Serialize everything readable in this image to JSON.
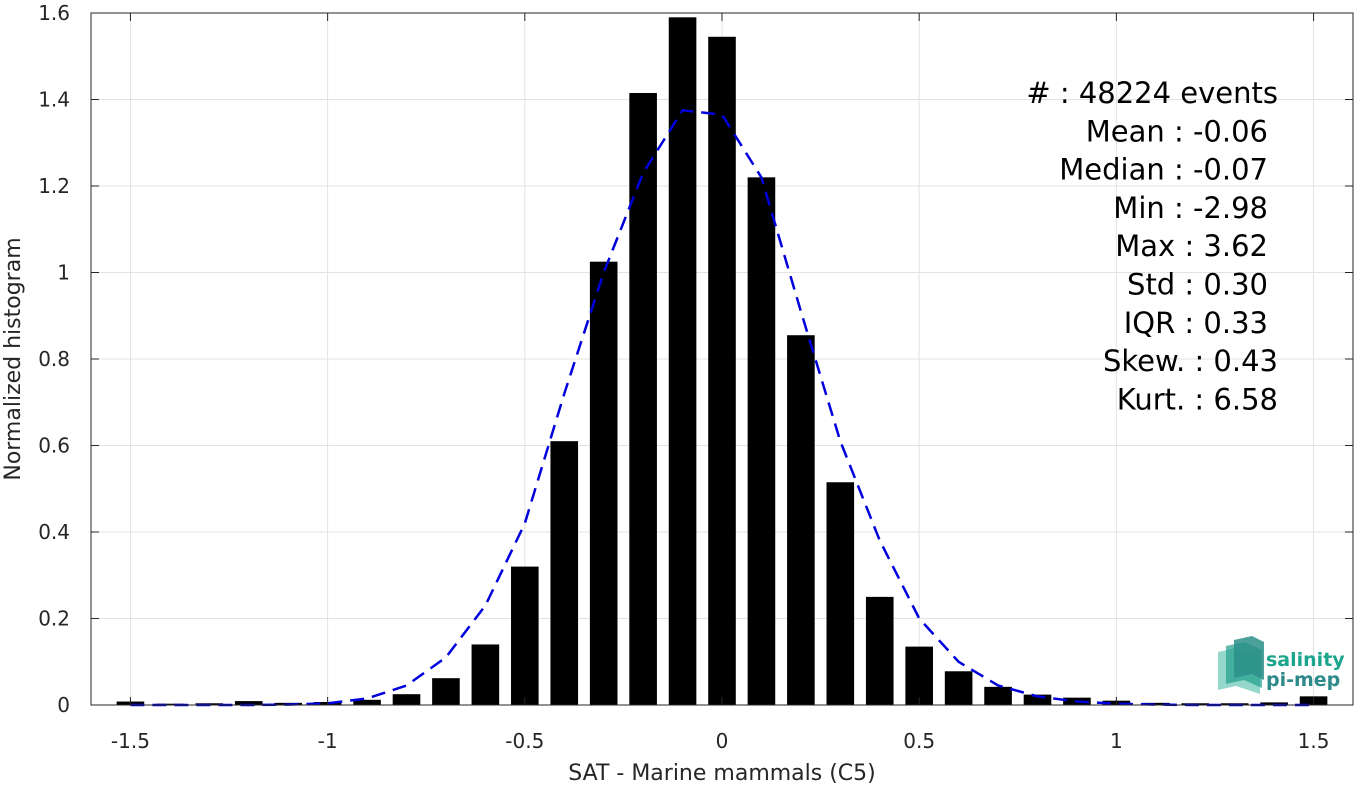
{
  "chart_data": {
    "type": "bar",
    "xlabel": "SAT - Marine mammals (C5)",
    "ylabel": "Normalized histogram",
    "xlim": [
      -1.6,
      1.6
    ],
    "ylim": [
      0,
      1.6
    ],
    "xticks": [
      -1.5,
      -1,
      -0.5,
      0,
      0.5,
      1,
      1.5
    ],
    "xtick_labels": [
      "-1.5",
      "-1",
      "-0.5",
      "0",
      "0.5",
      "1",
      "1.5"
    ],
    "yticks": [
      0,
      0.2,
      0.4,
      0.6,
      0.8,
      1,
      1.2,
      1.4,
      1.6
    ],
    "ytick_labels": [
      "0",
      "0.2",
      "0.4",
      "0.6",
      "0.8",
      "1",
      "1.2",
      "1.4",
      "1.6"
    ],
    "grid": true,
    "bar_color": "#000000",
    "bar_width": 0.07,
    "x": [
      -1.5,
      -1.4,
      -1.3,
      -1.2,
      -1.1,
      -1.0,
      -0.9,
      -0.8,
      -0.7,
      -0.6,
      -0.5,
      -0.4,
      -0.3,
      -0.2,
      -0.1,
      0.0,
      0.1,
      0.2,
      0.3,
      0.4,
      0.5,
      0.6,
      0.7,
      0.8,
      0.9,
      1.0,
      1.1,
      1.2,
      1.3,
      1.4,
      1.5
    ],
    "values": [
      0.008,
      0.003,
      0.004,
      0.009,
      0.005,
      0.007,
      0.012,
      0.025,
      0.062,
      0.14,
      0.32,
      0.61,
      1.025,
      1.415,
      1.59,
      1.545,
      1.22,
      0.855,
      0.515,
      0.25,
      0.135,
      0.078,
      0.042,
      0.024,
      0.017,
      0.01,
      0.005,
      0.004,
      0.004,
      0.006,
      0.02
    ],
    "fit": {
      "style": "dashed",
      "color": "#0000dd",
      "x": [
        -1.5,
        -1.4,
        -1.3,
        -1.2,
        -1.1,
        -1.0,
        -0.9,
        -0.8,
        -0.7,
        -0.6,
        -0.5,
        -0.4,
        -0.3,
        -0.2,
        -0.1,
        0.0,
        0.1,
        0.2,
        0.3,
        0.4,
        0.5,
        0.6,
        0.7,
        0.8,
        0.9,
        1.0,
        1.1,
        1.2,
        1.3,
        1.4,
        1.5
      ],
      "y": [
        0.0,
        0.0,
        0.0,
        0.0,
        0.001,
        0.004,
        0.015,
        0.045,
        0.11,
        0.23,
        0.42,
        0.72,
        1.0,
        1.23,
        1.375,
        1.365,
        1.22,
        0.91,
        0.61,
        0.38,
        0.2,
        0.1,
        0.045,
        0.02,
        0.008,
        0.003,
        0.001,
        0.0,
        0.0,
        0.0,
        0.0
      ]
    }
  },
  "stats": [
    "#  : 48224 events",
    "Mean : -0.06",
    "Median : -0.07",
    "Min : -2.98",
    "Max : 3.62",
    "Std : 0.30",
    "IQR : 0.33",
    "Skew. : 0.43",
    "Kurt. : 6.58"
  ],
  "logo": {
    "line1": "salinity",
    "line2": "pi-mep",
    "color1": "#1aa58c",
    "color2": "#2e8a8a"
  }
}
